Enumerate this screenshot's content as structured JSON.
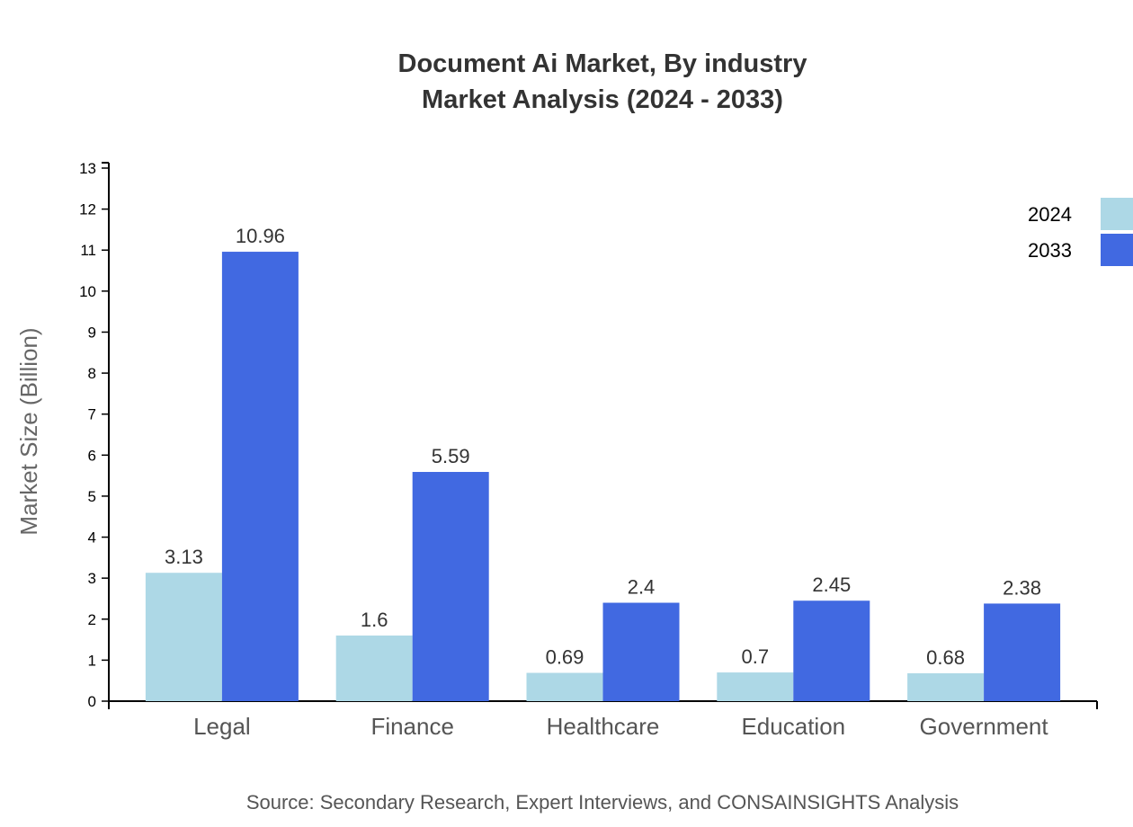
{
  "chart_data": {
    "type": "bar",
    "title": "Document Ai Market, By industry",
    "subtitle": "Market Analysis (2024 - 2033)",
    "xlabel": "",
    "ylabel": "Market Size (Billion)",
    "ylim": [
      0,
      13
    ],
    "yticks": [
      0,
      1,
      2,
      3,
      4,
      5,
      6,
      7,
      8,
      9,
      10,
      11,
      12,
      13
    ],
    "categories": [
      "Legal",
      "Finance",
      "Healthcare",
      "Education",
      "Government"
    ],
    "series": [
      {
        "name": "2024",
        "color": "#add8e6",
        "values": [
          3.13,
          1.6,
          0.69,
          0.7,
          0.68
        ]
      },
      {
        "name": "2033",
        "color": "#4169e1",
        "values": [
          10.96,
          5.59,
          2.4,
          2.45,
          2.38
        ]
      }
    ],
    "grid": false,
    "legend_position": "top-right",
    "source": "Source: Secondary Research, Expert Interviews, and CONSAINSIGHTS Analysis"
  }
}
